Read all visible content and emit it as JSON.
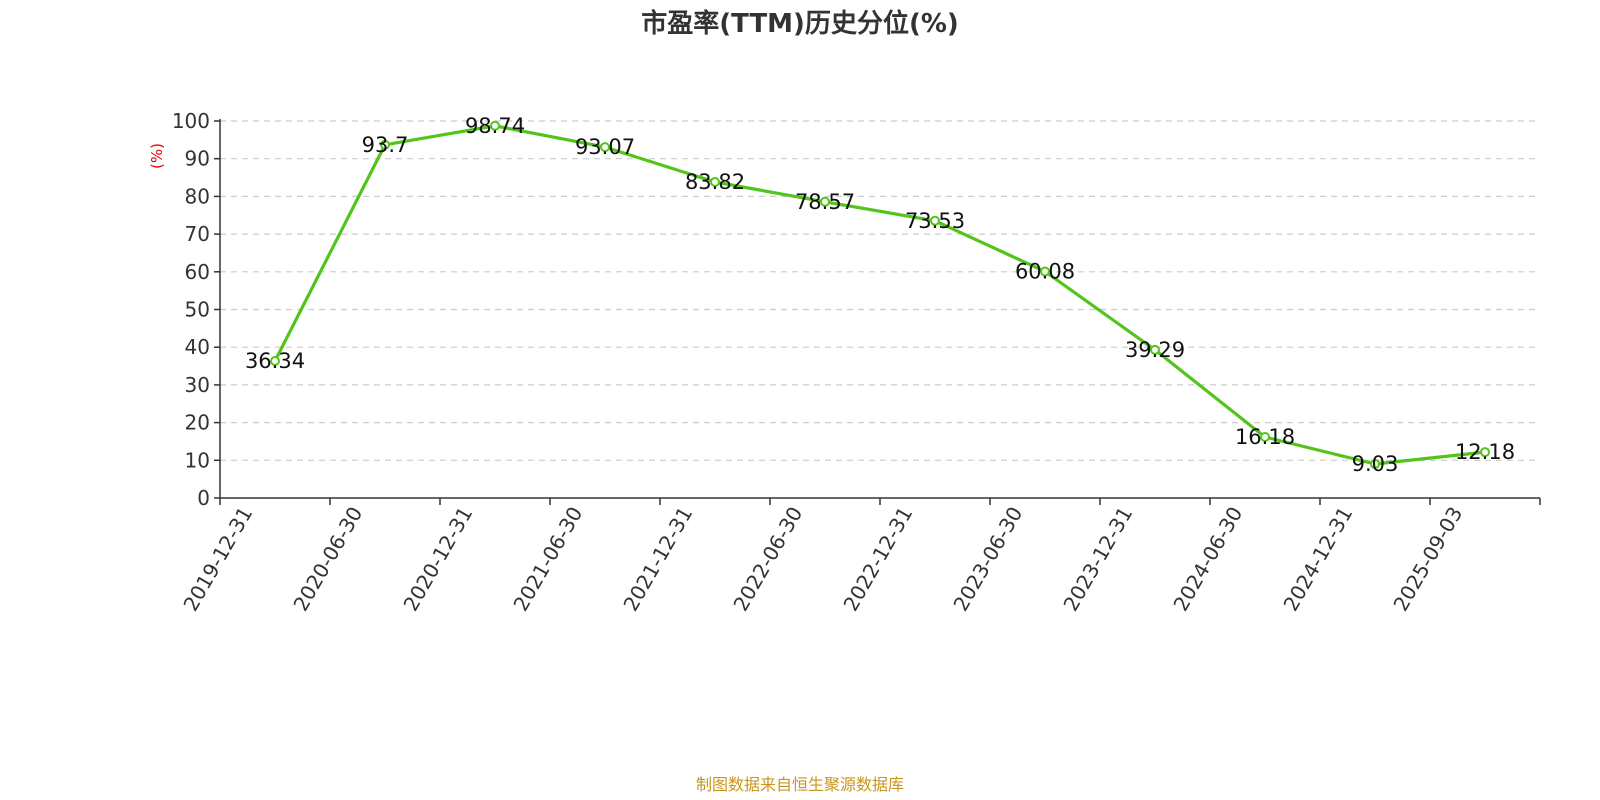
{
  "chart_data": {
    "type": "line",
    "title": "市盈率(TTM)历史分位(%)",
    "ylabel": "(%)",
    "xlabel": "",
    "ylim": [
      0,
      100
    ],
    "yticks": [
      0,
      10,
      20,
      30,
      40,
      50,
      60,
      70,
      80,
      90,
      100
    ],
    "grid": "horizontal-dashed",
    "categories": [
      "2019-12-31",
      "2020-06-30",
      "2020-12-31",
      "2021-06-30",
      "2021-12-31",
      "2022-06-30",
      "2022-12-31",
      "2023-06-30",
      "2023-12-31",
      "2024-06-30",
      "2024-12-31",
      "2025-09-03"
    ],
    "values": [
      36.34,
      93.7,
      98.74,
      93.07,
      83.82,
      78.57,
      73.53,
      60.08,
      39.29,
      16.18,
      9.03,
      12.18
    ],
    "value_labels": [
      "36.34",
      "93.7",
      "98.74",
      "93.07",
      "83.82",
      "78.57",
      "73.53",
      "60.08",
      "39.29",
      "16.18",
      "9.03",
      "12.18"
    ],
    "line_color": "#52c41a",
    "axis_color": "#333333",
    "grid_color": "#cccccc",
    "unit_color": "#e60000"
  },
  "source_note": "制图数据来自恒生聚源数据库",
  "source_color": "#c8961e"
}
